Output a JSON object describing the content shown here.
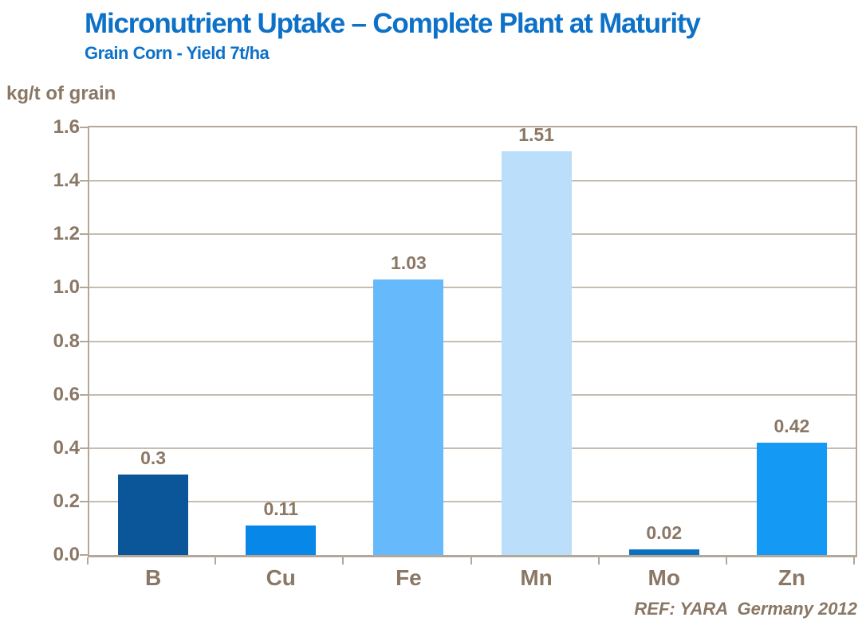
{
  "header": {
    "title": "Micronutrient Uptake – Complete Plant at Maturity",
    "subtitle": "Grain Corn - Yield 7t/ha"
  },
  "footer": {
    "ref": "REF: YARA  Germany 2012"
  },
  "colors": {
    "title_blue": "#0d71c8",
    "label_brown": "#8a7765",
    "axis_line": "#b3a79a",
    "gridline": "#c6bcb0",
    "bar_colors": [
      "#0a5699",
      "#0787e8",
      "#66b9fa",
      "#bbdefa",
      "#0c70be",
      "#149af5"
    ]
  },
  "chart_data": {
    "type": "bar",
    "title": "Micronutrient Uptake – Complete Plant at Maturity",
    "subtitle": "Grain Corn - Yield 7t/ha",
    "xlabel": "",
    "ylabel": "kg/t of grain",
    "categories": [
      "B",
      "Cu",
      "Fe",
      "Mn",
      "Mo",
      "Zn"
    ],
    "values": [
      0.3,
      0.11,
      1.03,
      1.51,
      0.02,
      0.42
    ],
    "value_labels": [
      "0.3",
      "0.11",
      "1.03",
      "1.51",
      "0.02",
      "0.42"
    ],
    "ylim": [
      0,
      1.6
    ],
    "ytick_step": 0.2,
    "ytick_labels": [
      "0.0",
      "0.2",
      "0.4",
      "0.6",
      "0.8",
      "1.0",
      "1.2",
      "1.4",
      "1.6"
    ],
    "grid": true,
    "legend": false,
    "annotation": "REF: YARA  Germany 2012"
  }
}
